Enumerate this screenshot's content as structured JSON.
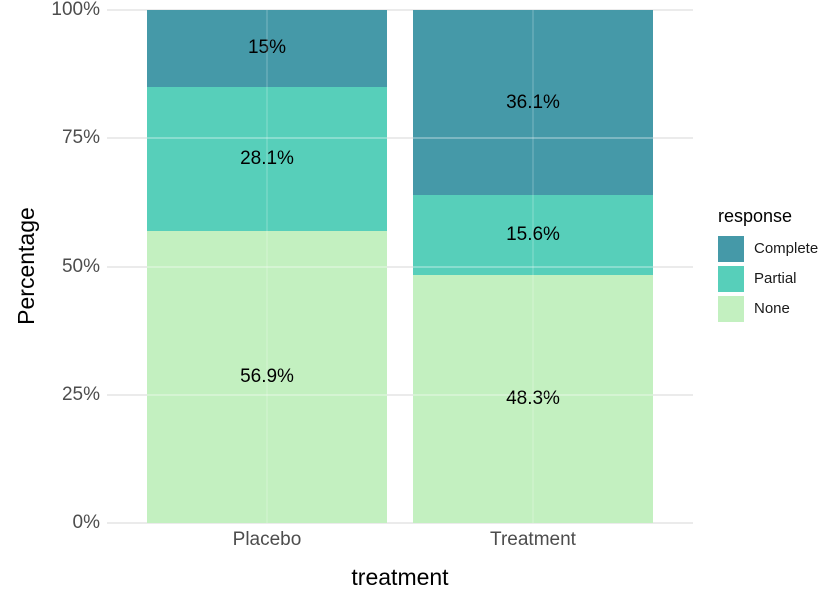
{
  "chart_data": {
    "type": "bar",
    "subtype": "stacked_percentage",
    "title": "",
    "x_axis": {
      "title": "treatment",
      "categories": [
        "Placebo",
        "Treatment"
      ]
    },
    "y_axis": {
      "title": "Percentage",
      "range": [
        0,
        100
      ],
      "ticks": [
        {
          "value": 0,
          "label": "0%"
        },
        {
          "value": 25,
          "label": "25%"
        },
        {
          "value": 50,
          "label": "50%"
        },
        {
          "value": 75,
          "label": "75%"
        },
        {
          "value": 100,
          "label": "100%"
        }
      ]
    },
    "legend": {
      "title": "response",
      "position": "right",
      "entries": [
        "Complete",
        "Partial",
        "None"
      ]
    },
    "stack_order": "top-to-bottom",
    "series": [
      {
        "name": "Complete",
        "color": "#4599a8",
        "values": [
          15.0,
          36.1
        ],
        "value_labels": [
          "15%",
          "36.1%"
        ]
      },
      {
        "name": "Partial",
        "color": "#57cfba",
        "values": [
          28.1,
          15.6
        ],
        "value_labels": [
          "28.1%",
          "15.6%"
        ]
      },
      {
        "name": "None",
        "color": "#c3f0c0",
        "values": [
          56.9,
          48.3
        ],
        "value_labels": [
          "56.9%",
          "48.3%"
        ]
      }
    ],
    "grid": {
      "horizontal_major": [
        0,
        25,
        50,
        75,
        100
      ],
      "color": "#ebebeb",
      "background": "#ffffff"
    },
    "value_label_color": "#000000",
    "axis_text_color": "#4d4d4d"
  }
}
